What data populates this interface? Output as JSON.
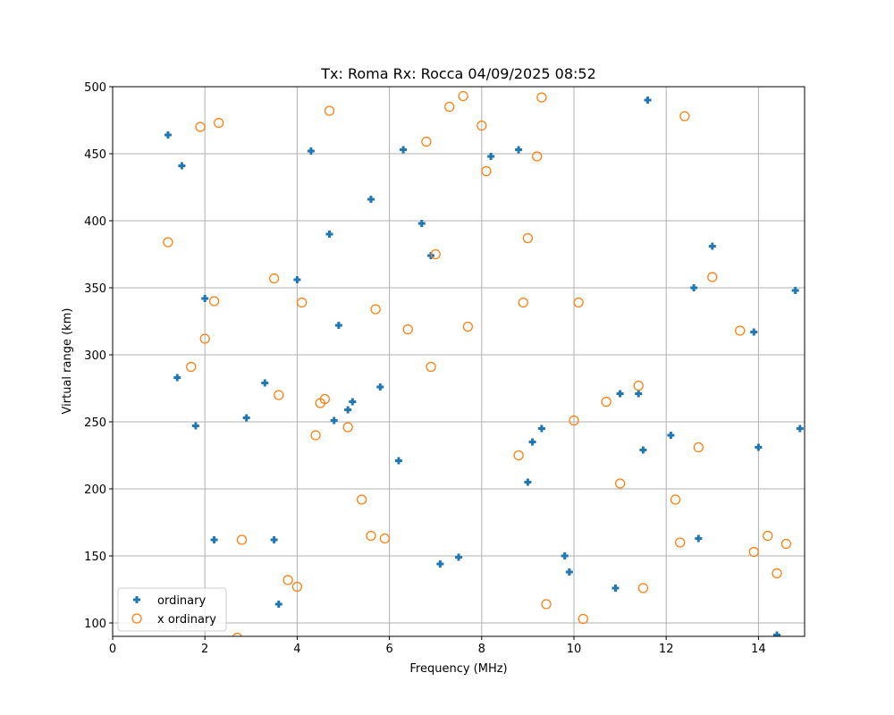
{
  "chart_data": {
    "type": "scatter",
    "title": "Tx: Roma Rx: Rocca 04/09/2025 08:52",
    "xlabel": "Frequency (MHz)",
    "ylabel": "Virtual range (km)",
    "xlim": [
      0,
      15
    ],
    "ylim": [
      90,
      500
    ],
    "xticks": [
      0,
      2,
      4,
      6,
      8,
      10,
      12,
      14
    ],
    "yticks": [
      100,
      150,
      200,
      250,
      300,
      350,
      400,
      450,
      500
    ],
    "grid": true,
    "legend_position": "lower left",
    "series": [
      {
        "name": "ordinary",
        "marker": "plus-filled",
        "color": "#1f77b4",
        "points": [
          [
            1.2,
            464
          ],
          [
            1.5,
            441
          ],
          [
            1.4,
            283
          ],
          [
            1.8,
            247
          ],
          [
            2.0,
            342
          ],
          [
            2.2,
            162
          ],
          [
            2.9,
            253
          ],
          [
            3.3,
            279
          ],
          [
            3.5,
            162
          ],
          [
            3.6,
            114
          ],
          [
            4.0,
            356
          ],
          [
            4.3,
            452
          ],
          [
            4.7,
            390
          ],
          [
            4.8,
            251
          ],
          [
            4.9,
            322
          ],
          [
            5.1,
            259
          ],
          [
            5.2,
            265
          ],
          [
            5.6,
            416
          ],
          [
            5.8,
            276
          ],
          [
            6.2,
            221
          ],
          [
            6.3,
            453
          ],
          [
            6.7,
            398
          ],
          [
            6.9,
            374
          ],
          [
            7.1,
            144
          ],
          [
            7.5,
            149
          ],
          [
            8.2,
            448
          ],
          [
            8.8,
            453
          ],
          [
            9.0,
            205
          ],
          [
            9.1,
            235
          ],
          [
            9.3,
            245
          ],
          [
            9.8,
            150
          ],
          [
            9.9,
            138
          ],
          [
            10.9,
            126
          ],
          [
            11.0,
            271
          ],
          [
            11.4,
            271
          ],
          [
            11.5,
            229
          ],
          [
            11.6,
            490
          ],
          [
            12.1,
            240
          ],
          [
            12.6,
            350
          ],
          [
            12.7,
            163
          ],
          [
            13.0,
            381
          ],
          [
            13.9,
            317
          ],
          [
            14.0,
            231
          ],
          [
            14.4,
            91
          ],
          [
            14.8,
            348
          ],
          [
            14.9,
            245
          ]
        ]
      },
      {
        "name": "x ordinary",
        "marker": "circle-open",
        "color": "#ff7f0e",
        "points": [
          [
            1.2,
            384
          ],
          [
            1.7,
            291
          ],
          [
            1.9,
            470
          ],
          [
            2.0,
            312
          ],
          [
            2.2,
            340
          ],
          [
            2.3,
            473
          ],
          [
            2.7,
            89
          ],
          [
            2.8,
            162
          ],
          [
            3.5,
            357
          ],
          [
            3.6,
            270
          ],
          [
            3.8,
            132
          ],
          [
            4.0,
            127
          ],
          [
            4.1,
            339
          ],
          [
            4.4,
            240
          ],
          [
            4.5,
            264
          ],
          [
            4.6,
            267
          ],
          [
            4.7,
            482
          ],
          [
            5.1,
            246
          ],
          [
            5.4,
            192
          ],
          [
            5.6,
            165
          ],
          [
            5.7,
            334
          ],
          [
            5.9,
            163
          ],
          [
            6.4,
            319
          ],
          [
            6.8,
            459
          ],
          [
            6.9,
            291
          ],
          [
            7.0,
            375
          ],
          [
            7.3,
            485
          ],
          [
            7.6,
            493
          ],
          [
            7.7,
            321
          ],
          [
            8.0,
            471
          ],
          [
            8.1,
            437
          ],
          [
            8.8,
            225
          ],
          [
            8.9,
            339
          ],
          [
            9.0,
            387
          ],
          [
            9.2,
            448
          ],
          [
            9.3,
            492
          ],
          [
            9.4,
            114
          ],
          [
            10.0,
            251
          ],
          [
            10.1,
            339
          ],
          [
            10.2,
            103
          ],
          [
            10.7,
            265
          ],
          [
            11.0,
            204
          ],
          [
            11.4,
            277
          ],
          [
            11.5,
            126
          ],
          [
            12.2,
            192
          ],
          [
            12.3,
            160
          ],
          [
            12.4,
            478
          ],
          [
            12.7,
            231
          ],
          [
            13.0,
            358
          ],
          [
            13.6,
            318
          ],
          [
            13.9,
            153
          ],
          [
            14.2,
            165
          ],
          [
            14.4,
            137
          ],
          [
            14.6,
            159
          ]
        ]
      }
    ]
  },
  "legend": {
    "items": [
      {
        "label": "ordinary"
      },
      {
        "label": "x ordinary"
      }
    ]
  }
}
